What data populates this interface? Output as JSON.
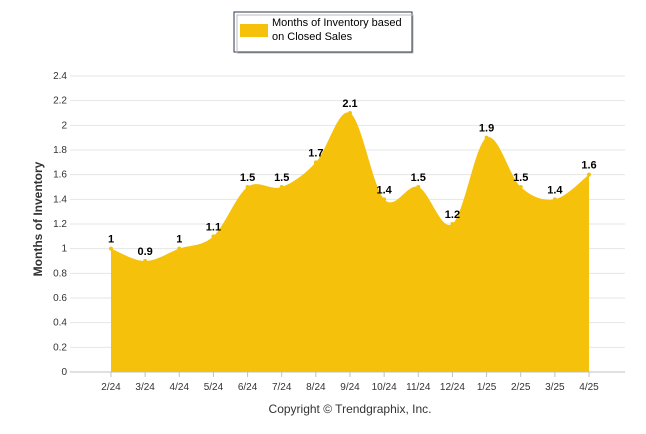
{
  "chart_data": {
    "type": "area",
    "title": "",
    "xlabel": "",
    "ylabel": "Months of Inventory",
    "ylim": [
      0,
      2.4
    ],
    "yticks": [
      "0",
      "0.2",
      "0.4",
      "0.6",
      "0.8",
      "1",
      "1.2",
      "1.4",
      "1.6",
      "1.8",
      "2",
      "2.2",
      "2.4"
    ],
    "categories": [
      "2/24",
      "3/24",
      "4/24",
      "5/24",
      "6/24",
      "7/24",
      "8/24",
      "9/24",
      "10/24",
      "11/24",
      "12/24",
      "1/25",
      "2/25",
      "3/25",
      "4/25"
    ],
    "series": [
      {
        "name": "Months of Inventory based on Closed Sales",
        "values": [
          1,
          0.9,
          1,
          1.1,
          1.5,
          1.5,
          1.7,
          2.1,
          1.4,
          1.5,
          1.2,
          1.9,
          1.5,
          1.4,
          1.6
        ],
        "labels": [
          "1",
          "0.9",
          "1",
          "1.1",
          "1.5",
          "1.5",
          "1.7",
          "2.1",
          "1.4",
          "1.5",
          "1.2",
          "1.9",
          "1.5",
          "1.4",
          "1.6"
        ],
        "color": "#F5C10A"
      }
    ],
    "legend": {
      "position": "top-center",
      "line1": "Months of Inventory based",
      "line2": "on Closed Sales"
    },
    "grid": true,
    "grid_color": "#e6e6e6"
  },
  "footer": {
    "copyright": "Copyright © Trendgraphix, Inc."
  }
}
